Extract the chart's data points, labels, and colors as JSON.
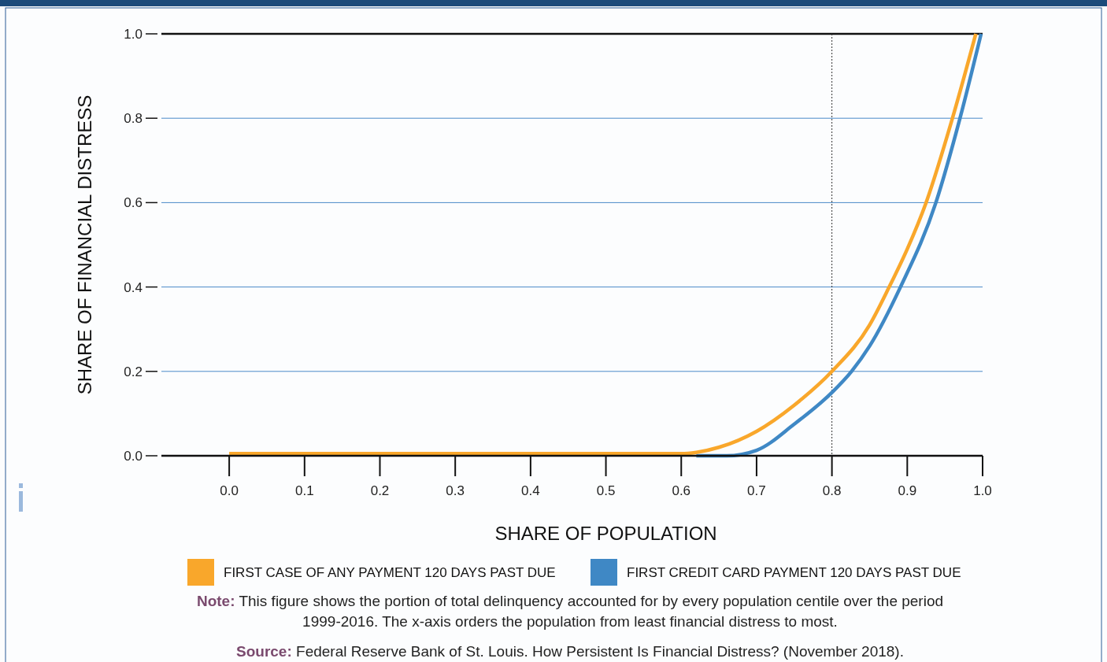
{
  "chart_data": {
    "type": "line",
    "xlabel": "SHARE OF POPULATION",
    "ylabel": "SHARE OF FINANCIAL DISTRESS",
    "series": [
      {
        "name": "FIRST CASE OF ANY PAYMENT 120 DAYS PAST DUE",
        "color": "#f9a72b",
        "x": [
          0,
          0.1,
          0.2,
          0.3,
          0.4,
          0.5,
          0.6,
          0.62,
          0.65,
          0.7,
          0.75,
          0.8,
          0.85,
          0.876,
          0.9,
          0.925,
          0.96,
          0.991
        ],
        "values": [
          0.005,
          0.005,
          0.005,
          0.005,
          0.005,
          0.005,
          0.005,
          0.008,
          0.02,
          0.058,
          0.12,
          0.2,
          0.31,
          0.4,
          0.49,
          0.6,
          0.8,
          1.0
        ]
      },
      {
        "name": "FIRST CREDIT CARD PAYMENT 120 DAYS PAST DUE",
        "color": "#3f88c5",
        "x": [
          0.62,
          0.66,
          0.7,
          0.75,
          0.8,
          0.826,
          0.85,
          0.891,
          0.938,
          0.97,
          0.998
        ],
        "values": [
          0,
          0,
          0.013,
          0.075,
          0.15,
          0.2,
          0.26,
          0.4,
          0.6,
          0.8,
          1.0
        ]
      }
    ],
    "xlim": [
      -0.09,
      1.0
    ],
    "xticks": [
      {
        "value": 0,
        "label": "0.0"
      },
      0.1,
      0.2,
      0.3,
      0.4,
      0.5,
      0.6,
      0.7,
      0.8,
      0.9,
      {
        "value": 1,
        "label": "1.0"
      }
    ],
    "ylim": [
      0,
      1.0
    ],
    "yticks": [
      {
        "value": 0,
        "label": "0.0"
      },
      0.2,
      0.4,
      0.6,
      0.8,
      {
        "value": 1,
        "label": "1.0"
      }
    ],
    "grid": "y",
    "legend": "bottom",
    "marker": "none",
    "line_style": "solid",
    "ref_lines": [
      {
        "axis": "x",
        "value": 0.8,
        "color": "#333333",
        "line_style": "dotted"
      }
    ],
    "annotations": [
      "Note: This figure shows the portion of total delinquency accounted for by every population centile over the period 1999-2016. The x-axis orders the population from least financial distress to most.",
      "Source: Federal Reserve Bank of St. Louis. How Persistent Is Financial Distress? (November 2018)."
    ]
  }
}
